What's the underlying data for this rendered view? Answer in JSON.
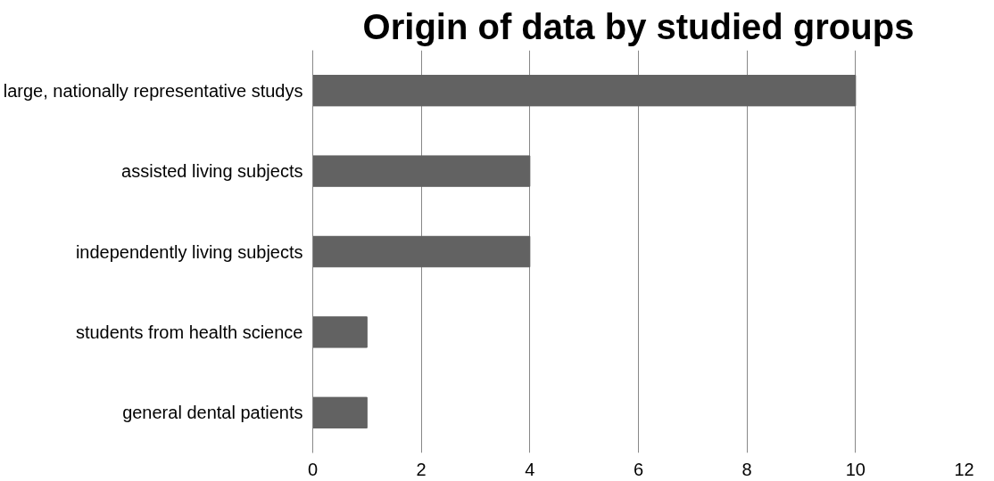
{
  "chart_data": {
    "type": "bar",
    "orientation": "horizontal",
    "title": "Origin of data by studied groups",
    "categories": [
      "large, nationally representative studys",
      "assisted living subjects",
      "independently living subjects",
      "students from health science",
      "general dental patients"
    ],
    "values": [
      10,
      4,
      4,
      1,
      1
    ],
    "color": "#626262",
    "xlim": [
      0,
      12
    ],
    "xticks": [
      0,
      2,
      4,
      6,
      8,
      10,
      12
    ],
    "grid": "x"
  }
}
